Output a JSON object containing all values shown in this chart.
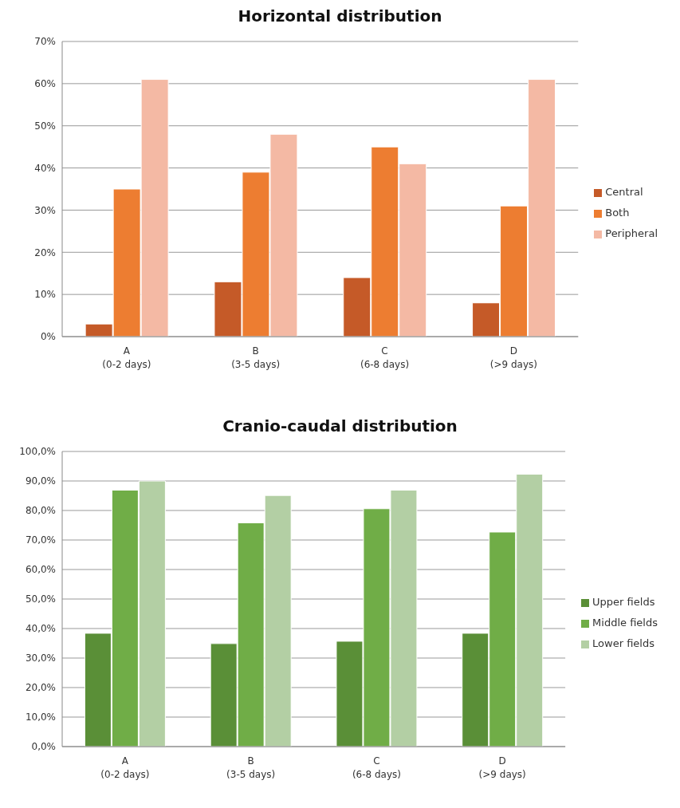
{
  "chart_data": [
    {
      "type": "bar",
      "title": "Horizontal distribution",
      "categories": [
        "A\n(0-2 days)",
        "B\n(3-5 days)",
        "C\n(6-8 days)",
        "D\n(>9 days)"
      ],
      "series": [
        {
          "name": "Central",
          "color": "#c55a28",
          "values": [
            3,
            13,
            14,
            8
          ]
        },
        {
          "name": "Both",
          "color": "#ed7d31",
          "values": [
            35,
            39,
            45,
            31
          ]
        },
        {
          "name": "Peripheral",
          "color": "#f4b9a4",
          "values": [
            61,
            48,
            41,
            61
          ]
        }
      ],
      "ylim": [
        0,
        70
      ],
      "yticks": [
        {
          "value": 0,
          "label": "0%"
        },
        {
          "value": 10,
          "label": "10%"
        },
        {
          "value": 20,
          "label": "20%"
        },
        {
          "value": 30,
          "label": "30%"
        },
        {
          "value": 40,
          "label": "40%"
        },
        {
          "value": 50,
          "label": "50%"
        },
        {
          "value": 60,
          "label": "60%"
        },
        {
          "value": 70,
          "label": "70%"
        }
      ],
      "grid": "y",
      "legend": "right"
    },
    {
      "type": "bar",
      "title": "Cranio-caudal distribution",
      "categories": [
        "A\n(0-2 days)",
        "B\n(3-5 days)",
        "C\n(6-8 days)",
        "D\n(>9 days)"
      ],
      "series": [
        {
          "name": "Upper fields",
          "color": "#5a8f37",
          "values": [
            38.4,
            34.9,
            35.7,
            38.4
          ]
        },
        {
          "name": "Middle fields",
          "color": "#70ad47",
          "values": [
            86.9,
            75.8,
            80.6,
            72.7
          ]
        },
        {
          "name": "Lower fields",
          "color": "#b3cfa4",
          "values": [
            90,
            85.1,
            86.9,
            92.3
          ]
        }
      ],
      "ylim": [
        0,
        100
      ],
      "yticks": [
        {
          "value": 0,
          "label": "0,0%"
        },
        {
          "value": 10,
          "label": "10,0%"
        },
        {
          "value": 20,
          "label": "20,0%"
        },
        {
          "value": 30,
          "label": "30,0%"
        },
        {
          "value": 40,
          "label": "40,0%"
        },
        {
          "value": 50,
          "label": "50,0%"
        },
        {
          "value": 60,
          "label": "60,0%"
        },
        {
          "value": 70,
          "label": "70,0%"
        },
        {
          "value": 80,
          "label": "80,0%"
        },
        {
          "value": 90,
          "label": "90,0%"
        },
        {
          "value": 100,
          "label": "100,0%"
        }
      ],
      "grid": "y",
      "legend": "right"
    }
  ]
}
